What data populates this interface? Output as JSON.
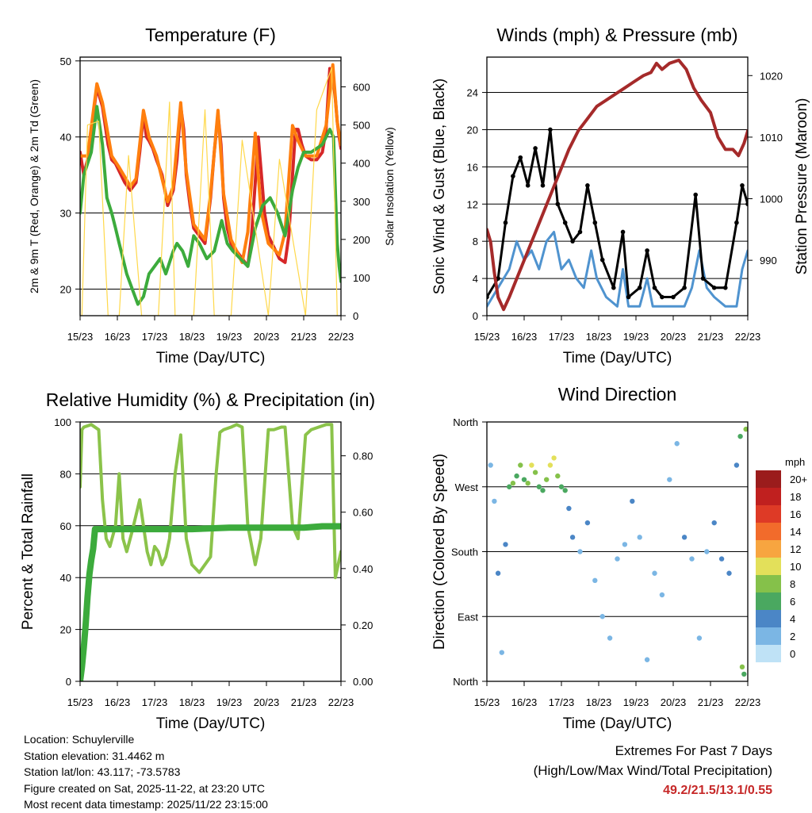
{
  "chart_data": [
    {
      "type": "line",
      "title": "Temperature (F)",
      "xlabel": "Time (Day/UTC)",
      "ylabel": "2m & 9m T (Red, Orange) & 2m Td (Green)",
      "y2label": "Solar Insolation (Yellow)",
      "categories": [
        "15/23",
        "16/23",
        "17/23",
        "18/23",
        "19/23",
        "20/23",
        "21/23",
        "22/23"
      ],
      "ylim": [
        16.5,
        50.5
      ],
      "yticks": [
        20,
        30,
        40,
        50
      ],
      "y2lim": [
        0,
        678
      ],
      "y2ticks": [
        0,
        100,
        200,
        300,
        400,
        500,
        600
      ],
      "series": [
        {
          "name": "2m T",
          "color": "#d62728",
          "x": [
            0,
            0.1,
            0.2,
            0.3,
            0.45,
            0.6,
            0.75,
            0.85,
            0.95,
            1.05,
            1.2,
            1.35,
            1.5,
            1.6,
            1.7,
            1.78,
            1.85,
            1.95,
            2.05,
            2.2,
            2.35,
            2.5,
            2.6,
            2.7,
            2.78,
            2.85,
            2.95,
            3.05,
            3.2,
            3.35,
            3.5,
            3.6,
            3.7,
            3.78,
            3.85,
            3.95,
            4.05,
            4.2,
            4.35,
            4.5,
            4.6,
            4.7,
            4.78,
            4.85,
            4.95,
            5.05,
            5.2,
            5.35,
            5.5,
            5.6,
            5.7,
            5.78,
            5.85,
            5.95,
            6.05,
            6.2,
            6.35,
            6.5,
            6.6,
            6.7,
            6.78,
            6.85,
            6.9,
            6.95,
            7.0
          ],
          "y": [
            38,
            35,
            37,
            41,
            46.5,
            44,
            39,
            37,
            36.5,
            35.5,
            34,
            33,
            34,
            38,
            43,
            40,
            39.5,
            38.5,
            37,
            35,
            31,
            33,
            37,
            44,
            41,
            35,
            31,
            28,
            27,
            26,
            32,
            38,
            43,
            39,
            32,
            28,
            26,
            25,
            24,
            23,
            27,
            34,
            40,
            36,
            30,
            27,
            25.5,
            24,
            23.5,
            27,
            35,
            41,
            41,
            39,
            37.5,
            37,
            37,
            38,
            41,
            49,
            48,
            45,
            42,
            40,
            38.5
          ]
        },
        {
          "name": "9m T",
          "color": "#ff7f0e",
          "x": [
            0,
            0.2,
            0.45,
            0.6,
            0.85,
            1.05,
            1.35,
            1.5,
            1.7,
            1.85,
            2.05,
            2.35,
            2.5,
            2.7,
            2.85,
            3.05,
            3.35,
            3.5,
            3.7,
            3.85,
            4.05,
            4.35,
            4.5,
            4.7,
            4.85,
            5.05,
            5.35,
            5.5,
            5.7,
            5.85,
            6.05,
            6.35,
            6.6,
            6.78,
            6.9,
            7.0
          ],
          "y": [
            37.5,
            37.5,
            47,
            44.5,
            37.5,
            36,
            33.5,
            34.5,
            43.5,
            40,
            37.5,
            31.5,
            33.5,
            44.5,
            35.5,
            28.5,
            26.5,
            32.5,
            43.5,
            32.5,
            26.5,
            23.5,
            27.5,
            40.5,
            30.5,
            26,
            24.5,
            27.5,
            41.5,
            39.5,
            37.5,
            37.5,
            41.5,
            49.5,
            42,
            39
          ]
        },
        {
          "name": "2m Td",
          "color": "#3cab3c",
          "x": [
            0,
            0.1,
            0.3,
            0.45,
            0.6,
            0.72,
            0.85,
            0.95,
            1.05,
            1.15,
            1.25,
            1.4,
            1.55,
            1.7,
            1.85,
            2.0,
            2.15,
            2.3,
            2.5,
            2.6,
            2.75,
            2.9,
            3.05,
            3.2,
            3.4,
            3.6,
            3.8,
            3.95,
            4.1,
            4.3,
            4.5,
            4.7,
            4.9,
            5.1,
            5.3,
            5.5,
            5.7,
            5.85,
            6.0,
            6.2,
            6.5,
            6.7,
            6.8,
            6.85,
            6.9,
            6.95,
            7.0
          ],
          "y": [
            30,
            35,
            38,
            44,
            39,
            32,
            30,
            28,
            26,
            24,
            22,
            20,
            18,
            19,
            22,
            23,
            24,
            22,
            25,
            26,
            25,
            23,
            27,
            26,
            24,
            25,
            29,
            26,
            25,
            24,
            23,
            28,
            31,
            32,
            30,
            27,
            33,
            36,
            38,
            38,
            39,
            41,
            40,
            33,
            26,
            23,
            21
          ]
        },
        {
          "name": "Solar Insolation",
          "color": "#ffd84a",
          "axis": "y2",
          "x": [
            0.05,
            0.2,
            0.5,
            0.75,
            1.05,
            1.3,
            1.65,
            2.1,
            2.4,
            2.55,
            3.05,
            3.35,
            3.6,
            4.05,
            4.35,
            5.05,
            5.35,
            6.05,
            6.35,
            6.75,
            6.9
          ],
          "y": [
            0,
            500,
            510,
            0,
            0,
            420,
            0,
            0,
            560,
            0,
            0,
            540,
            0,
            0,
            460,
            0,
            410,
            0,
            540,
            650,
            0
          ]
        }
      ]
    },
    {
      "type": "line",
      "title": "Winds (mph) & Pressure (mb)",
      "xlabel": "Time (Day/UTC)",
      "ylabel": "Sonic Wind & Gust (Blue, Black)",
      "y2label": "Station Pressure (Maroon)",
      "categories": [
        "15/23",
        "16/23",
        "17/23",
        "18/23",
        "19/23",
        "20/23",
        "21/23",
        "22/23"
      ],
      "ylim": [
        0,
        27.8
      ],
      "yticks": [
        0,
        4,
        8,
        12,
        16,
        20,
        24
      ],
      "y2lim": [
        981,
        1023
      ],
      "y2ticks": [
        990,
        1000,
        1010,
        1020
      ],
      "series": [
        {
          "name": "Sonic Wind",
          "color": "#4f93cf",
          "x": [
            0,
            0.3,
            0.6,
            0.8,
            1.0,
            1.2,
            1.4,
            1.6,
            1.8,
            2.0,
            2.2,
            2.4,
            2.6,
            2.8,
            2.95,
            3.2,
            3.5,
            3.65,
            3.8,
            4.1,
            4.3,
            4.45,
            4.7,
            5.0,
            5.3,
            5.5,
            5.7,
            5.9,
            6.1,
            6.4,
            6.7,
            6.85,
            7.0
          ],
          "y": [
            1,
            3,
            5,
            8,
            6,
            7,
            5,
            8,
            9,
            5,
            6,
            4,
            3,
            7,
            4,
            2,
            1,
            5,
            1,
            1,
            4,
            1,
            1,
            1,
            1,
            3,
            7,
            3,
            2,
            1,
            1,
            5,
            7
          ]
        },
        {
          "name": "Gust",
          "color": "#000000",
          "x": [
            0,
            0.3,
            0.5,
            0.7,
            0.9,
            1.1,
            1.3,
            1.5,
            1.7,
            1.9,
            2.1,
            2.3,
            2.5,
            2.7,
            2.9,
            3.1,
            3.4,
            3.65,
            3.8,
            4.1,
            4.3,
            4.5,
            4.7,
            5.0,
            5.3,
            5.6,
            5.8,
            6.1,
            6.4,
            6.7,
            6.85,
            7.0
          ],
          "y": [
            2,
            4,
            10,
            15,
            17,
            14,
            18,
            14,
            20,
            12,
            10,
            8,
            9,
            14,
            10,
            6,
            3,
            9,
            2,
            3,
            7,
            3,
            2,
            2,
            3,
            13,
            4,
            3,
            3,
            10,
            14,
            12
          ]
        },
        {
          "name": "Station Pressure",
          "color": "#a52a2a",
          "axis": "y2",
          "x": [
            0,
            0.1,
            0.2,
            0.3,
            0.45,
            0.6,
            0.8,
            1.0,
            1.2,
            1.4,
            1.6,
            1.8,
            2.0,
            2.2,
            2.45,
            2.7,
            2.95,
            3.2,
            3.45,
            3.7,
            3.95,
            4.2,
            4.4,
            4.55,
            4.7,
            4.9,
            5.15,
            5.35,
            5.55,
            5.75,
            6.0,
            6.2,
            6.4,
            6.6,
            6.75,
            6.9,
            7.0
          ],
          "y": [
            995,
            993,
            988,
            984,
            982,
            984,
            987,
            990,
            993,
            996,
            999,
            1002,
            1005,
            1008,
            1011,
            1013,
            1015,
            1016,
            1017,
            1018,
            1019,
            1020,
            1020.5,
            1022,
            1021,
            1022,
            1022.5,
            1021,
            1018,
            1016,
            1014,
            1010,
            1008,
            1008,
            1007,
            1009,
            1011
          ]
        }
      ]
    },
    {
      "type": "line",
      "title": "Relative Humidity (%) & Precipitation (in)",
      "xlabel": "Time (Day/UTC)",
      "ylabel": "Percent & Total Rainfall",
      "categories": [
        "15/23",
        "16/23",
        "17/23",
        "18/23",
        "19/23",
        "20/23",
        "21/23",
        "22/23"
      ],
      "ylim": [
        0,
        100
      ],
      "yticks": [
        0,
        20,
        40,
        60,
        80,
        100
      ],
      "y2lim": [
        0,
        0.92
      ],
      "y2ticks": [
        0.0,
        0.2,
        0.4,
        0.6,
        0.8
      ],
      "series": [
        {
          "name": "Relative Humidity",
          "color": "#8bc34a",
          "x": [
            0,
            0.05,
            0.1,
            0.3,
            0.5,
            0.6,
            0.7,
            0.8,
            0.95,
            1.05,
            1.15,
            1.25,
            1.4,
            1.6,
            1.8,
            1.9,
            2.0,
            2.1,
            2.2,
            2.3,
            2.4,
            2.55,
            2.7,
            2.85,
            3.0,
            3.2,
            3.5,
            3.65,
            3.75,
            3.85,
            4.05,
            4.2,
            4.35,
            4.5,
            4.7,
            4.85,
            5.05,
            5.2,
            5.4,
            5.5,
            5.7,
            5.85,
            6.05,
            6.2,
            6.4,
            6.6,
            6.75,
            6.85,
            7.0
          ],
          "y": [
            75,
            97,
            98,
            99,
            97,
            70,
            55,
            52,
            60,
            80,
            55,
            50,
            58,
            70,
            50,
            45,
            52,
            50,
            45,
            48,
            55,
            80,
            95,
            55,
            45,
            42,
            48,
            80,
            96,
            97,
            98,
            99,
            98,
            60,
            45,
            55,
            97,
            97,
            98,
            98,
            60,
            55,
            95,
            97,
            98,
            99,
            99,
            40,
            50
          ]
        },
        {
          "name": "Total Precipitation",
          "color": "#3cab3c",
          "axis": "y2",
          "x": [
            0,
            0.05,
            0.1,
            0.15,
            0.2,
            0.25,
            0.3,
            0.35,
            0.4,
            0.5,
            1.0,
            2.0,
            3.0,
            4.0,
            5.0,
            6.0,
            6.5,
            7.0
          ],
          "y": [
            0,
            0.05,
            0.12,
            0.2,
            0.3,
            0.38,
            0.43,
            0.47,
            0.54,
            0.54,
            0.54,
            0.54,
            0.54,
            0.545,
            0.545,
            0.545,
            0.55,
            0.55
          ]
        }
      ]
    },
    {
      "type": "scatter",
      "title": "Wind Direction",
      "xlabel": "Time (Day/UTC)",
      "ylabel": "Direction (Colored By Speed)",
      "categories": [
        "15/23",
        "16/23",
        "17/23",
        "18/23",
        "19/23",
        "20/23",
        "21/23",
        "22/23"
      ],
      "ylim": [
        0,
        360
      ],
      "yticks": [
        0,
        90,
        180,
        270,
        360
      ],
      "ytick_labels": [
        "North",
        "East",
        "South",
        "West",
        "North"
      ],
      "colorbar": {
        "unit": "mph",
        "labels": [
          "20+",
          "18",
          "16",
          "14",
          "12",
          "10",
          "8",
          "6",
          "4",
          "2",
          "0"
        ],
        "colors": [
          "#9b1c1c",
          "#c0201f",
          "#de3a26",
          "#f26b2b",
          "#f7a540",
          "#e3e05a",
          "#85c14a",
          "#4aa860",
          "#4b86c6",
          "#7bb6e4",
          "#bfe2f6"
        ]
      },
      "series": [
        {
          "name": "Direction",
          "x": [
            0.1,
            0.2,
            0.3,
            0.4,
            0.5,
            0.6,
            0.7,
            0.8,
            0.9,
            1.0,
            1.1,
            1.2,
            1.3,
            1.4,
            1.5,
            1.6,
            1.7,
            1.8,
            1.9,
            2.0,
            2.1,
            2.2,
            2.3,
            2.5,
            2.7,
            2.9,
            3.1,
            3.3,
            3.5,
            3.7,
            3.9,
            4.1,
            4.3,
            4.5,
            4.7,
            4.9,
            5.1,
            5.3,
            5.5,
            5.7,
            5.9,
            6.1,
            6.3,
            6.5,
            6.7,
            6.8,
            6.85,
            6.9,
            6.95
          ],
          "y": [
            300,
            250,
            150,
            40,
            190,
            270,
            275,
            285,
            300,
            280,
            275,
            300,
            290,
            270,
            265,
            280,
            300,
            310,
            285,
            270,
            265,
            240,
            200,
            180,
            220,
            140,
            90,
            60,
            170,
            190,
            250,
            200,
            30,
            150,
            120,
            280,
            330,
            200,
            170,
            60,
            180,
            220,
            170,
            150,
            300,
            340,
            20,
            10,
            350
          ],
          "speed": [
            1,
            1,
            3,
            1,
            4,
            5,
            7,
            6,
            8,
            6,
            7,
            9,
            8,
            6,
            6,
            8,
            10,
            9,
            7,
            5,
            6,
            4,
            3,
            1,
            3,
            1,
            1,
            1,
            1,
            1,
            4,
            1,
            1,
            1,
            1,
            1,
            1,
            3,
            1,
            1,
            2,
            4,
            4,
            3,
            3,
            6,
            7,
            6,
            7
          ]
        }
      ]
    }
  ],
  "station_info": {
    "location": "Location: Schuylerville",
    "elevation": "Station elevation: 31.4462 m",
    "latlon": "Station lat/lon: 43.117; -73.5783",
    "created": "Figure created on Sat, 2025-11-22, at 23:20 UTC",
    "latest": "Most recent data timestamp: 2025/11/22 23:15:00"
  },
  "extremes": {
    "title": "Extremes For Past 7 Days",
    "subtitle": "(High/Low/Max Wind/Total Precipitation)",
    "values": "49.2/21.5/13.1/0.55"
  }
}
